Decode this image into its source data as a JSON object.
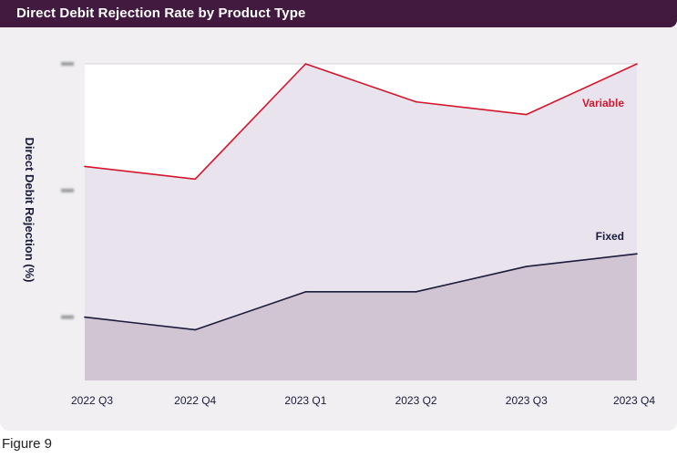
{
  "header": {
    "title": "Direct Debit Rejection Rate by Product Type"
  },
  "caption": "Figure 9",
  "chart_data": {
    "type": "area",
    "title": "Direct Debit Rejection Rate by Product Type",
    "xlabel": "",
    "ylabel": "Direct Debit Rejection (%)",
    "ylim": [
      0,
      0.25
    ],
    "yticks": [
      0.05,
      0.15,
      0.25
    ],
    "ytick_labels_obscured": true,
    "grid": true,
    "categories": [
      "2022 Q3",
      "2022 Q4",
      "2023 Q1",
      "2023 Q2",
      "2023 Q3",
      "2023 Q4"
    ],
    "series": [
      {
        "name": "Variable",
        "values": [
          0.169,
          0.159,
          0.25,
          0.22,
          0.21,
          0.25
        ],
        "color": "#d5152c",
        "fill": "#e8e3ec"
      },
      {
        "name": "Fixed",
        "values": [
          0.05,
          0.04,
          0.07,
          0.07,
          0.09,
          0.1
        ],
        "color": "#1b1b3a",
        "fill": "#d1c4d3"
      }
    ],
    "legend": "inline labels at right end of each series"
  }
}
